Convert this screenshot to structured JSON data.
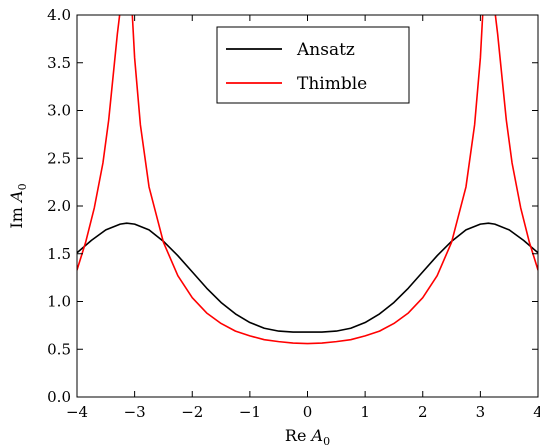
{
  "chart_data": {
    "type": "line",
    "xlabel_prefix": "Re",
    "ylabel_prefix": "Im",
    "var_main": "A",
    "var_sub": "0",
    "xlim": [
      -4,
      4
    ],
    "ylim": [
      0,
      4
    ],
    "xticks": [
      -4,
      -3,
      -2,
      -1,
      0,
      1,
      2,
      3,
      4
    ],
    "xtick_labels": [
      "−4",
      "−3",
      "−2",
      "−1",
      "0",
      "1",
      "2",
      "3",
      "4"
    ],
    "yticks": [
      0,
      0.5,
      1,
      1.5,
      2,
      2.5,
      3,
      3.5,
      4
    ],
    "ytick_labels": [
      "0.0",
      "0.5",
      "1.0",
      "1.5",
      "2.0",
      "2.5",
      "3.0",
      "3.5",
      "4.0"
    ],
    "legend_position": "top-center",
    "series": [
      {
        "name": "Ansatz",
        "color": "#000000",
        "x": [
          -4,
          -3.75,
          -3.5,
          -3.25,
          -3.14,
          -3,
          -2.75,
          -2.5,
          -2.25,
          -2,
          -1.75,
          -1.5,
          -1.25,
          -1,
          -0.75,
          -0.5,
          -0.25,
          0,
          0.25,
          0.5,
          0.75,
          1,
          1.25,
          1.5,
          1.75,
          2,
          2.25,
          2.5,
          2.75,
          3,
          3.14,
          3.25,
          3.5,
          3.75,
          4
        ],
        "y": [
          1.51,
          1.64,
          1.75,
          1.81,
          1.82,
          1.81,
          1.75,
          1.63,
          1.48,
          1.31,
          1.14,
          0.99,
          0.87,
          0.78,
          0.72,
          0.69,
          0.68,
          0.68,
          0.68,
          0.69,
          0.72,
          0.78,
          0.87,
          0.99,
          1.14,
          1.31,
          1.48,
          1.63,
          1.75,
          1.81,
          1.82,
          1.81,
          1.75,
          1.64,
          1.51
        ]
      },
      {
        "name": "Thimble",
        "color": "#ff0000",
        "segments": [
          {
            "x": [
              -4,
              -3.85,
              -3.7,
              -3.55,
              -3.45,
              -3.35,
              -3.3,
              -3.26
            ],
            "y": [
              1.33,
              1.62,
              1.98,
              2.45,
              2.9,
              3.5,
              3.8,
              4.0
            ]
          },
          {
            "x": [
              -3.04,
              -3.0,
              -2.9,
              -2.75,
              -2.5,
              -2.25,
              -2.0,
              -1.75,
              -1.5,
              -1.25,
              -1.0,
              -0.75,
              -0.5,
              -0.25,
              0,
              0.25,
              0.5,
              0.75,
              1.0,
              1.25,
              1.5,
              1.75,
              2.0,
              2.25,
              2.5,
              2.75,
              2.9,
              3.0,
              3.04
            ],
            "y": [
              4.0,
              3.55,
              2.85,
              2.2,
              1.62,
              1.27,
              1.04,
              0.88,
              0.77,
              0.69,
              0.64,
              0.6,
              0.58,
              0.565,
              0.56,
              0.565,
              0.58,
              0.6,
              0.64,
              0.69,
              0.77,
              0.88,
              1.04,
              1.27,
              1.62,
              2.2,
              2.85,
              3.55,
              4.0
            ]
          },
          {
            "x": [
              3.26,
              3.3,
              3.35,
              3.45,
              3.55,
              3.7,
              3.85,
              4
            ],
            "y": [
              4.0,
              3.8,
              3.5,
              2.9,
              2.45,
              1.98,
              1.62,
              1.33
            ]
          }
        ]
      }
    ]
  }
}
